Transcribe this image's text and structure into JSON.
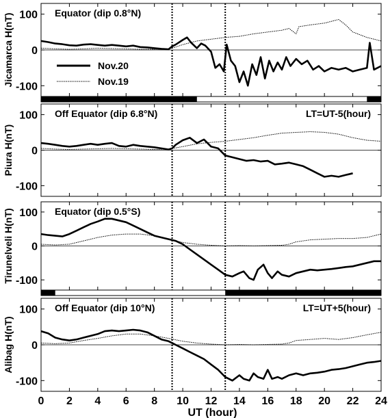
{
  "chart_data": {
    "type": "line",
    "x_axis": {
      "label": "UT (hour)",
      "range": [
        0,
        24
      ],
      "ticks": [
        "0",
        "2",
        "4",
        "6",
        "8",
        "10",
        "12",
        "14",
        "16",
        "18",
        "20",
        "22",
        "24"
      ]
    },
    "y_range": [
      -130,
      130
    ],
    "y_ticks": [
      "100",
      "0",
      "-100"
    ],
    "vertical_markers_ut": [
      9.25,
      13.0
    ],
    "legend": {
      "entries": [
        {
          "label": "Nov.20",
          "style": "thick-solid"
        },
        {
          "label": "Nov.19",
          "style": "thin-dotted"
        }
      ],
      "panel": 0
    },
    "panels": [
      {
        "ylabel": "Jicamarca H(nT)",
        "annotation": "Equator (dip 0.8°N)",
        "lt_note": "",
        "night_bar": {
          "ut_ranges": [
            [
              0,
              11
            ],
            [
              23,
              24
            ]
          ]
        },
        "series": [
          {
            "name": "Nov.20",
            "x": [
              0,
              0.5,
              1,
              1.5,
              2,
              2.5,
              3,
              3.5,
              4,
              4.5,
              5,
              5.5,
              6,
              6.5,
              7,
              7.5,
              8,
              8.5,
              9,
              9.25,
              9.5,
              10,
              10.3,
              10.6,
              11,
              11.3,
              11.6,
              12,
              12.3,
              12.6,
              12.9,
              13.1,
              13.4,
              13.7,
              14,
              14.3,
              14.6,
              14.9,
              15.2,
              15.5,
              15.8,
              16.1,
              16.4,
              16.7,
              17,
              17.3,
              17.6,
              18,
              18.4,
              18.8,
              19.2,
              19.6,
              20,
              20.5,
              21,
              21.5,
              22,
              22.5,
              23,
              23.2,
              23.5,
              24
            ],
            "values": [
              25,
              22,
              18,
              16,
              13,
              12,
              15,
              16,
              14,
              12,
              14,
              12,
              10,
              12,
              8,
              7,
              5,
              3,
              2,
              10,
              15,
              28,
              35,
              20,
              5,
              18,
              12,
              -5,
              -50,
              -40,
              -60,
              15,
              -30,
              -45,
              -90,
              -60,
              -100,
              -40,
              -70,
              -20,
              -80,
              -30,
              -60,
              -35,
              -55,
              -20,
              -45,
              -25,
              -40,
              -30,
              -55,
              -45,
              -60,
              -50,
              -55,
              -50,
              -60,
              -55,
              -50,
              20,
              -55,
              -45
            ]
          },
          {
            "name": "Nov.19",
            "x": [
              0,
              1,
              2,
              3,
              4,
              5,
              6,
              7,
              8,
              9,
              9.5,
              10,
              11,
              12,
              13,
              14,
              15,
              16,
              17,
              17.5,
              18,
              18.2,
              19,
              20,
              21,
              21.5,
              22,
              23,
              24
            ],
            "values": [
              5,
              3,
              2,
              3,
              5,
              4,
              3,
              2,
              2,
              3,
              8,
              15,
              25,
              30,
              35,
              38,
              45,
              50,
              55,
              60,
              45,
              65,
              70,
              75,
              85,
              70,
              50,
              35,
              25
            ]
          }
        ]
      },
      {
        "ylabel": "Piura H(nT)",
        "annotation": "Off Equator (dip 6.8°N)",
        "lt_note": "LT=UT-5(hour)",
        "night_bar": {
          "ut_ranges": []
        },
        "series": [
          {
            "name": "Nov.20",
            "x": [
              0,
              0.5,
              1,
              1.5,
              2,
              2.5,
              3,
              3.5,
              4,
              4.5,
              5,
              5.5,
              6,
              6.5,
              7,
              7.5,
              8,
              8.5,
              9,
              9.25,
              9.5,
              10,
              10.5,
              11,
              11.5,
              12,
              12.5,
              13,
              13.5,
              14,
              14.5,
              15,
              15.5,
              16,
              16.5,
              17,
              17.5,
              18,
              18.5,
              19,
              19.5,
              20,
              20.5,
              21,
              21.5,
              22
            ],
            "values": [
              20,
              18,
              15,
              12,
              10,
              12,
              15,
              18,
              15,
              18,
              20,
              12,
              10,
              15,
              12,
              10,
              8,
              5,
              2,
              5,
              15,
              28,
              35,
              20,
              30,
              10,
              5,
              -15,
              -20,
              -25,
              -30,
              -28,
              -32,
              -30,
              -40,
              -38,
              -35,
              -40,
              -45,
              -55,
              -65,
              -75,
              -72,
              -75,
              -70,
              -65
            ]
          },
          {
            "name": "Nov.19",
            "x": [
              0,
              1,
              2,
              3,
              4,
              5,
              6,
              7,
              8,
              9,
              10,
              11,
              12,
              13,
              14,
              15,
              16,
              17,
              18,
              19,
              20,
              21,
              22,
              23,
              24
            ],
            "values": [
              5,
              3,
              2,
              3,
              4,
              5,
              4,
              3,
              2,
              3,
              10,
              18,
              22,
              25,
              30,
              35,
              42,
              48,
              50,
              52,
              50,
              45,
              35,
              28,
              25
            ]
          }
        ]
      },
      {
        "ylabel": "Tirunelveli H(nT)",
        "annotation": "Equator (dip 0.5°S)",
        "lt_note": "",
        "night_bar": {
          "ut_ranges": [
            [
              0,
              1
            ],
            [
              13,
              24
            ]
          ]
        },
        "series": [
          {
            "name": "Nov.20",
            "x": [
              0,
              0.5,
              1,
              1.5,
              2,
              2.5,
              3,
              3.5,
              4,
              4.5,
              5,
              5.5,
              6,
              6.5,
              7,
              7.5,
              8,
              8.5,
              9,
              9.5,
              10,
              10.5,
              11,
              11.5,
              12,
              12.5,
              13,
              13.5,
              14,
              14.3,
              14.7,
              15,
              15.3,
              15.7,
              16,
              16.3,
              16.7,
              17,
              17.5,
              18,
              18.5,
              19,
              19.5,
              20,
              20.5,
              21,
              21.5,
              22,
              22.5,
              23,
              23.5,
              24
            ],
            "values": [
              35,
              32,
              30,
              28,
              35,
              45,
              55,
              65,
              72,
              80,
              80,
              75,
              70,
              60,
              50,
              40,
              30,
              25,
              20,
              15,
              5,
              -10,
              -25,
              -40,
              -55,
              -70,
              -85,
              -90,
              -80,
              -75,
              -95,
              -100,
              -70,
              -55,
              -80,
              -95,
              -75,
              -85,
              -90,
              -80,
              -75,
              -70,
              -72,
              -70,
              -68,
              -65,
              -62,
              -60,
              -55,
              -50,
              -45,
              -45
            ]
          },
          {
            "name": "Nov.19",
            "x": [
              0,
              1,
              2,
              3,
              4,
              5,
              6,
              7,
              8,
              9,
              10,
              11,
              12,
              13,
              14,
              15,
              16,
              17,
              17.5,
              18,
              19,
              20,
              21,
              22,
              23,
              24
            ],
            "values": [
              5,
              3,
              5,
              15,
              25,
              32,
              35,
              35,
              30,
              20,
              10,
              5,
              2,
              0,
              1,
              0,
              1,
              2,
              5,
              12,
              18,
              20,
              22,
              22,
              25,
              35
            ]
          }
        ]
      },
      {
        "ylabel": "Alibag H(nT)",
        "annotation": "Off Equator (dip 10°N)",
        "lt_note": "LT=UT+5(hour)",
        "night_bar": {
          "ut_ranges": []
        },
        "series": [
          {
            "name": "Nov.20",
            "x": [
              0,
              0.5,
              1,
              1.5,
              2,
              2.5,
              3,
              3.5,
              4,
              4.5,
              5,
              5.5,
              6,
              6.5,
              7,
              7.5,
              8,
              8.5,
              9,
              9.5,
              10,
              10.5,
              11,
              11.5,
              12,
              12.5,
              13,
              13.5,
              14,
              14.3,
              14.7,
              15,
              15.3,
              15.7,
              16,
              16.3,
              16.7,
              17,
              17.5,
              18,
              18.5,
              19,
              19.5,
              20,
              20.5,
              21,
              21.5,
              22,
              22.5,
              23,
              23.5,
              24
            ],
            "values": [
              38,
              32,
              20,
              15,
              12,
              15,
              20,
              25,
              30,
              38,
              40,
              38,
              40,
              42,
              40,
              35,
              25,
              15,
              10,
              0,
              -10,
              -20,
              -30,
              -40,
              -55,
              -70,
              -90,
              -100,
              -85,
              -95,
              -100,
              -80,
              -90,
              -95,
              -70,
              -95,
              -90,
              -95,
              -85,
              -80,
              -85,
              -80,
              -78,
              -75,
              -70,
              -68,
              -65,
              -60,
              -55,
              -50,
              -48,
              -45
            ]
          },
          {
            "name": "Nov.19",
            "x": [
              0,
              1,
              2,
              3,
              4,
              5,
              6,
              7,
              8,
              9,
              10,
              11,
              12,
              13,
              14,
              15,
              16,
              17,
              17.5,
              18,
              19,
              20,
              21,
              22,
              23,
              24
            ],
            "values": [
              5,
              3,
              5,
              12,
              18,
              25,
              30,
              30,
              25,
              18,
              10,
              5,
              2,
              0,
              1,
              0,
              1,
              2,
              5,
              12,
              15,
              18,
              15,
              20,
              28,
              35
            ]
          }
        ]
      }
    ]
  }
}
